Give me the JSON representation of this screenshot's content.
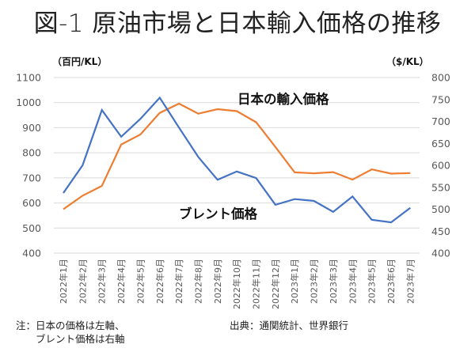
{
  "title": "図-1 原油市場と日本輸入価格の推移",
  "notes": {
    "left_line1": "注：日本の価格は左軸、",
    "left_line2": "　　ブレント価格は右軸",
    "source": "出典：通関統計、世界銀行"
  },
  "colors": {
    "japan": "#ED7D31",
    "brent": "#4472C4",
    "grid": "#D9D9D9"
  },
  "chart_data": {
    "type": "line",
    "title": "図-1 原油市場と日本輸入価格の推移",
    "left_axis": {
      "label": "（百円/KL）",
      "ylim": [
        400,
        1100
      ],
      "ticks": [
        1100,
        1000,
        900,
        800,
        700,
        600,
        500,
        400
      ]
    },
    "right_axis": {
      "label": "（$/KL）",
      "ylim": [
        400,
        800
      ],
      "ticks": [
        800,
        750,
        700,
        650,
        600,
        550,
        500,
        450,
        400
      ]
    },
    "grid": true,
    "categories": [
      "2022年1月",
      "2022年2月",
      "2022年3月",
      "2022年4月",
      "2022年5月",
      "2022年6月",
      "2022年7月",
      "2022年8月",
      "2022年9月",
      "2022年10月",
      "2022年11月",
      "2022年12月",
      "2023年1月",
      "2023年2月",
      "2023年3月",
      "2023年4月",
      "2023年5月",
      "2023年6月",
      "2023年7月"
    ],
    "series": [
      {
        "name": "日本の輸入価格",
        "axis": "left",
        "color": "#ED7D31",
        "values": [
          575,
          629,
          668,
          833,
          873,
          959,
          996,
          956,
          974,
          966,
          922,
          823,
          722,
          718,
          723,
          693,
          734,
          717,
          719
        ]
      },
      {
        "name": "ブレント価格",
        "axis": "right",
        "color": "#4472C4",
        "values": [
          537,
          600,
          726,
          665,
          706,
          754,
          686,
          619,
          567,
          586,
          571,
          510,
          523,
          519,
          494,
          529,
          476,
          470,
          503
        ]
      }
    ],
    "annotations": [
      "日本の輸入価格",
      "ブレント価格"
    ]
  }
}
